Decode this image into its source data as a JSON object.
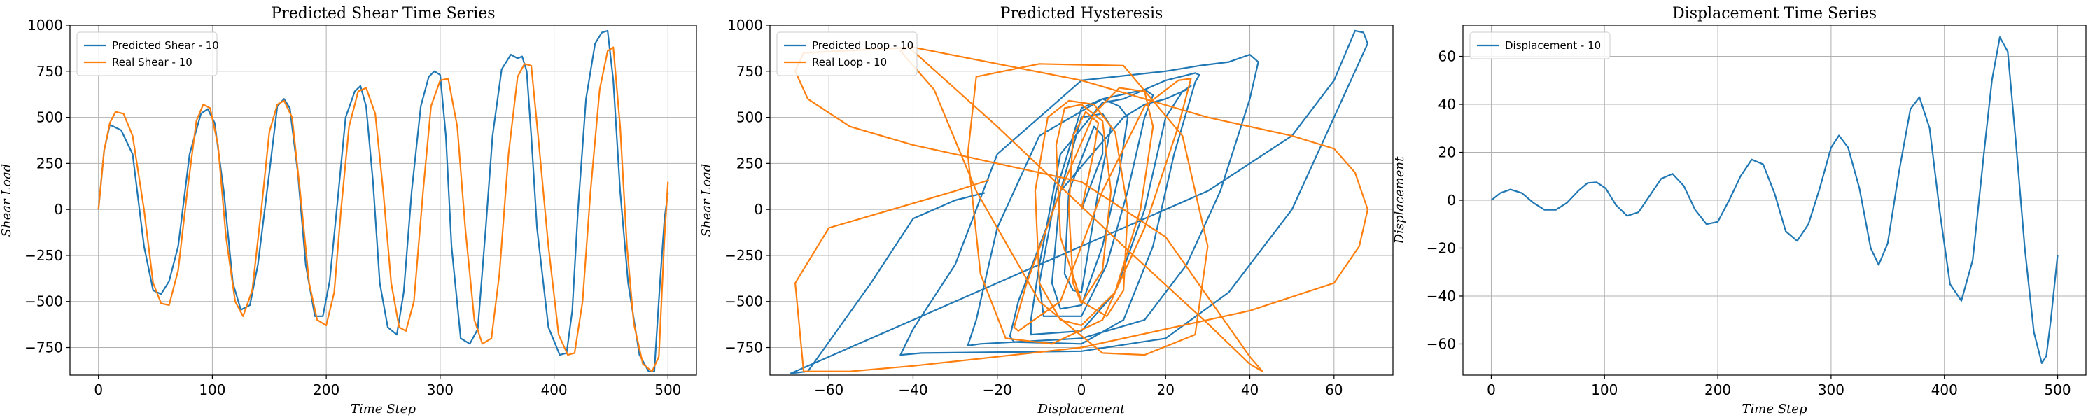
{
  "chart_data": [
    {
      "type": "line",
      "title": "Predicted Shear Time Series",
      "xlabel": "Time Step",
      "ylabel": "Shear Load",
      "xlim": [
        -25,
        525
      ],
      "ylim": [
        -900,
        1000
      ],
      "xticks": [
        0,
        100,
        200,
        300,
        400,
        500
      ],
      "yticks": [
        -750,
        -500,
        -250,
        0,
        250,
        500,
        750,
        1000
      ],
      "grid": true,
      "legend": "top-left",
      "series": [
        {
          "name": "Predicted Shear - 10",
          "color": "#1f77b4",
          "x": [
            0,
            5,
            10,
            20,
            30,
            40,
            48,
            55,
            62,
            70,
            80,
            90,
            96,
            102,
            110,
            118,
            125,
            133,
            140,
            150,
            157,
            163,
            168,
            175,
            182,
            190,
            197,
            203,
            210,
            217,
            225,
            230,
            235,
            241,
            247,
            254,
            262,
            268,
            275,
            283,
            290,
            295,
            300,
            305,
            310,
            318,
            326,
            333,
            340,
            346,
            354,
            362,
            368,
            372,
            376,
            380,
            385,
            395,
            405,
            411,
            416,
            421,
            428,
            436,
            442,
            447,
            452,
            458,
            465,
            475,
            483,
            488,
            493,
            497,
            500
          ],
          "values": [
            0,
            320,
            460,
            430,
            300,
            -200,
            -440,
            -460,
            -390,
            -200,
            300,
            520,
            545,
            470,
            100,
            -400,
            -545,
            -520,
            -300,
            200,
            560,
            600,
            550,
            200,
            -300,
            -580,
            -580,
            -390,
            50,
            500,
            640,
            670,
            560,
            150,
            -400,
            -640,
            -680,
            -450,
            100,
            560,
            720,
            750,
            730,
            400,
            -200,
            -700,
            -730,
            -650,
            -100,
            400,
            760,
            840,
            820,
            830,
            750,
            400,
            -100,
            -640,
            -790,
            -780,
            -550,
            0,
            600,
            900,
            960,
            970,
            700,
            100,
            -400,
            -790,
            -880,
            -880,
            -400,
            -50,
            90
          ]
        },
        {
          "name": "Real Shear - 10",
          "color": "#ff7f0e",
          "x": [
            0,
            5,
            10,
            15,
            22,
            30,
            40,
            48,
            55,
            62,
            70,
            78,
            86,
            92,
            98,
            105,
            112,
            120,
            127,
            135,
            143,
            150,
            157,
            163,
            170,
            177,
            185,
            192,
            200,
            207,
            213,
            220,
            228,
            235,
            243,
            250,
            257,
            264,
            270,
            277,
            285,
            292,
            300,
            307,
            315,
            322,
            330,
            337,
            345,
            352,
            360,
            368,
            374,
            380,
            386,
            395,
            404,
            412,
            418,
            425,
            432,
            440,
            447,
            452,
            458,
            464,
            470,
            478,
            486,
            492,
            497,
            500
          ],
          "values": [
            0,
            320,
            470,
            530,
            520,
            400,
            0,
            -400,
            -510,
            -520,
            -330,
            100,
            480,
            570,
            550,
            350,
            -150,
            -500,
            -580,
            -440,
            0,
            420,
            570,
            590,
            500,
            100,
            -400,
            -600,
            -630,
            -450,
            0,
            450,
            640,
            660,
            520,
            100,
            -400,
            -640,
            -660,
            -500,
            100,
            560,
            700,
            710,
            450,
            -100,
            -600,
            -730,
            -700,
            -350,
            300,
            720,
            790,
            780,
            400,
            -200,
            -680,
            -790,
            -780,
            -500,
            100,
            650,
            860,
            880,
            450,
            -200,
            -620,
            -840,
            -880,
            -800,
            -150,
            150
          ]
        }
      ]
    },
    {
      "type": "line",
      "title": "Predicted Hysteresis",
      "xlabel": "Displacement",
      "ylabel": "Shear Load",
      "xlim": [
        -74,
        74
      ],
      "ylim": [
        -900,
        1000
      ],
      "xticks": [
        -60,
        -40,
        -20,
        0,
        20,
        40,
        60
      ],
      "yticks": [
        -750,
        -500,
        -250,
        0,
        250,
        500,
        750,
        1000
      ],
      "grid": true,
      "legend": "top-left",
      "series": [
        {
          "name": "Predicted Loop - 10",
          "color": "#1f77b4",
          "x": [
            0,
            5,
            5,
            3,
            -3,
            -4,
            -2,
            0,
            4,
            7,
            5,
            0,
            -5,
            -7,
            -5,
            0,
            5,
            9,
            11,
            9,
            5,
            0,
            -6,
            -10,
            -9,
            0,
            6,
            11,
            15,
            17,
            15,
            10,
            5,
            -5,
            -10,
            -12,
            -12,
            0,
            8,
            15,
            20,
            24,
            26,
            25,
            20,
            15,
            10,
            -5,
            -15,
            -17,
            -16,
            0,
            10,
            17,
            22,
            27,
            28,
            27,
            20,
            15,
            5,
            -10,
            -20,
            -25,
            -27,
            -24,
            0,
            15,
            25,
            33,
            40,
            42,
            40,
            35,
            28,
            20,
            0,
            -20,
            -30,
            -40,
            -43,
            -38,
            0,
            20,
            35,
            50,
            60,
            68,
            67,
            65,
            60,
            50,
            30,
            0,
            -20,
            -40,
            -60,
            -69,
            -65,
            -50,
            -40,
            -30,
            -23
          ],
          "values": [
            0,
            300,
            400,
            450,
            100,
            -350,
            -440,
            -450,
            100,
            450,
            520,
            500,
            100,
            -400,
            -540,
            -520,
            -200,
            200,
            500,
            560,
            600,
            550,
            100,
            -400,
            -580,
            -580,
            -300,
            100,
            500,
            620,
            650,
            600,
            580,
            300,
            -300,
            -600,
            -680,
            -660,
            -450,
            0,
            500,
            640,
            670,
            650,
            600,
            570,
            500,
            100,
            -500,
            -690,
            -720,
            -730,
            -600,
            -200,
            300,
            690,
            730,
            740,
            700,
            650,
            600,
            400,
            -100,
            -600,
            -740,
            -730,
            -700,
            -600,
            -300,
            100,
            600,
            800,
            840,
            800,
            780,
            750,
            700,
            300,
            -300,
            -650,
            -790,
            -780,
            -770,
            -700,
            -450,
            0,
            500,
            900,
            960,
            970,
            700,
            400,
            100,
            -200,
            -400,
            -600,
            -800,
            -890,
            -880,
            -400,
            -50,
            50,
            90
          ]
        },
        {
          "name": "Real Loop - 10",
          "color": "#ff7f0e",
          "x": [
            0,
            3,
            4,
            1,
            -2,
            -3,
            -2,
            0,
            5,
            7,
            5,
            0,
            -4,
            -6,
            -5,
            0,
            6,
            10,
            11,
            8,
            3,
            -3,
            -8,
            -11,
            -10,
            -5,
            0,
            8,
            14,
            17,
            15,
            9,
            3,
            -5,
            -13,
            -16,
            -15,
            -5,
            5,
            15,
            23,
            26,
            23,
            15,
            5,
            -7,
            -18,
            -24,
            -27,
            -25,
            -10,
            10,
            24,
            30,
            27,
            15,
            5,
            -10,
            -25,
            -35,
            -43,
            -41,
            -20,
            10,
            30,
            40,
            43,
            40,
            20,
            0,
            -20,
            -40,
            -55,
            -65,
            -68,
            -66,
            -40,
            0,
            30,
            50,
            60,
            65,
            68,
            66,
            60,
            40,
            20,
            0,
            -20,
            -40,
            -55,
            -66,
            -68,
            -60,
            -45,
            -30,
            -22
          ],
          "values": [
            0,
            320,
            470,
            530,
            400,
            0,
            -400,
            -510,
            -330,
            100,
            480,
            570,
            550,
            350,
            -150,
            -500,
            -580,
            -440,
            0,
            420,
            570,
            590,
            500,
            100,
            -400,
            -600,
            -630,
            -450,
            0,
            450,
            640,
            660,
            520,
            100,
            -400,
            -640,
            -660,
            -500,
            100,
            560,
            700,
            710,
            450,
            -100,
            -600,
            -730,
            -700,
            -350,
            300,
            720,
            790,
            780,
            400,
            -200,
            -680,
            -790,
            -780,
            -500,
            100,
            650,
            860,
            880,
            450,
            -200,
            -620,
            -840,
            -880,
            -800,
            -150,
            150,
            250,
            350,
            450,
            600,
            750,
            850,
            880,
            700,
            500,
            400,
            330,
            200,
            0,
            -200,
            -400,
            -550,
            -650,
            -750,
            -800,
            -850,
            -880,
            -880,
            -400,
            -100,
            0,
            100,
            160
          ]
        }
      ]
    },
    {
      "type": "line",
      "title": "Displacement Time Series",
      "xlabel": "Time Step",
      "ylabel": "Displacement",
      "xlim": [
        -25,
        525
      ],
      "ylim": [
        -73,
        73
      ],
      "xticks": [
        0,
        100,
        200,
        300,
        400,
        500
      ],
      "yticks": [
        -60,
        -40,
        -20,
        0,
        20,
        40,
        60
      ],
      "grid": true,
      "legend": "top-left",
      "series": [
        {
          "name": "Displacement - 10",
          "color": "#1f77b4",
          "x": [
            0,
            8,
            17,
            27,
            37,
            47,
            57,
            67,
            77,
            85,
            93,
            101,
            110,
            120,
            130,
            140,
            150,
            160,
            170,
            180,
            190,
            200,
            210,
            220,
            230,
            240,
            250,
            260,
            270,
            280,
            290,
            300,
            307,
            315,
            325,
            335,
            342,
            350,
            360,
            370,
            378,
            387,
            396,
            405,
            415,
            425,
            435,
            442,
            449,
            456,
            463,
            471,
            479,
            486,
            490,
            494,
            500
          ],
          "values": [
            0,
            3,
            4.5,
            3,
            -1,
            -4,
            -4,
            -1,
            4,
            7.2,
            7.5,
            5,
            -2,
            -6.5,
            -5,
            2,
            9,
            11,
            6,
            -4,
            -10,
            -9,
            0,
            10,
            17,
            15,
            3,
            -13,
            -17,
            -10,
            5,
            22,
            27,
            22,
            5,
            -20,
            -27,
            -18,
            12,
            38,
            43,
            30,
            -5,
            -35,
            -42,
            -25,
            20,
            50,
            68,
            62,
            25,
            -20,
            -55,
            -68,
            -65,
            -50,
            -23
          ]
        }
      ]
    }
  ]
}
